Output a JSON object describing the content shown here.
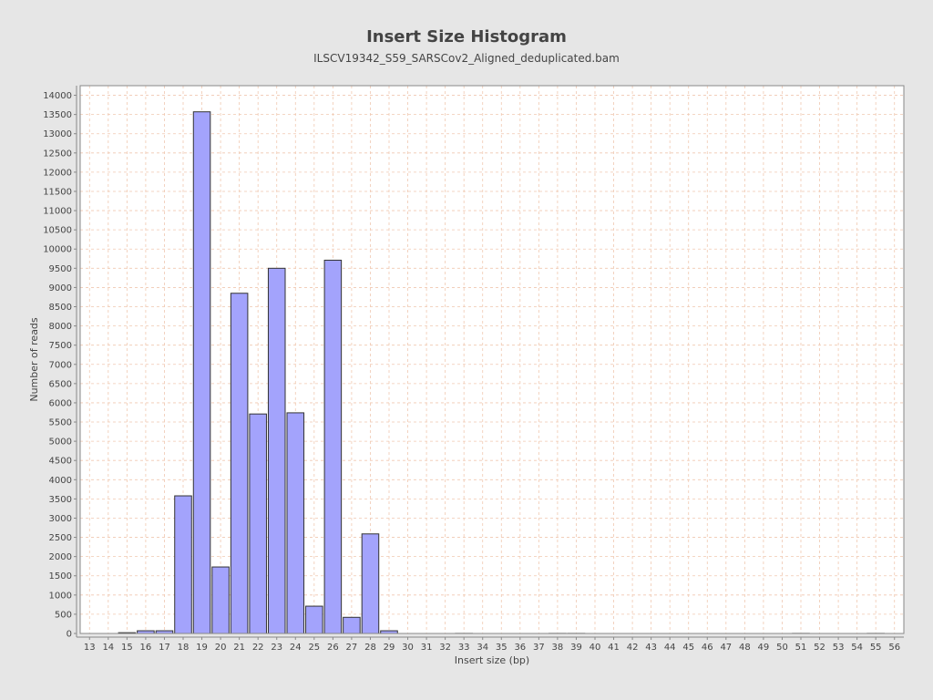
{
  "chart_data": {
    "type": "bar",
    "title": "Insert Size Histogram",
    "subtitle": "ILSCV19342_S59_SARSCov2_Aligned_deduplicated.bam",
    "xlabel": "Insert size (bp)",
    "ylabel": "Number of reads",
    "ylim": [
      0,
      14250
    ],
    "ytick_step": 500,
    "grid": true,
    "categories": [
      "13",
      "14",
      "15",
      "16",
      "17",
      "18",
      "19",
      "20",
      "21",
      "22",
      "23",
      "24",
      "25",
      "26",
      "27",
      "28",
      "29",
      "30",
      "31",
      "32",
      "33",
      "34",
      "35",
      "36",
      "37",
      "38",
      "39",
      "40",
      "41",
      "42",
      "43",
      "44",
      "45",
      "46",
      "47",
      "48",
      "49",
      "50",
      "51",
      "52",
      "53",
      "54",
      "55",
      "56"
    ],
    "values": [
      0,
      0,
      20,
      70,
      70,
      3580,
      13570,
      1730,
      8850,
      5710,
      9500,
      5740,
      710,
      9710,
      420,
      2590,
      70,
      0,
      0,
      0,
      3,
      0,
      0,
      0,
      0,
      3,
      3,
      0,
      0,
      0,
      0,
      0,
      0,
      0,
      0,
      0,
      0,
      0,
      3,
      0,
      0,
      0,
      3,
      0
    ],
    "colors": {
      "bar_fill": "#a3a3fc",
      "bar_stroke": "#333333",
      "grid": "#f0c8b0",
      "plot_bg": "#ffffff"
    }
  }
}
